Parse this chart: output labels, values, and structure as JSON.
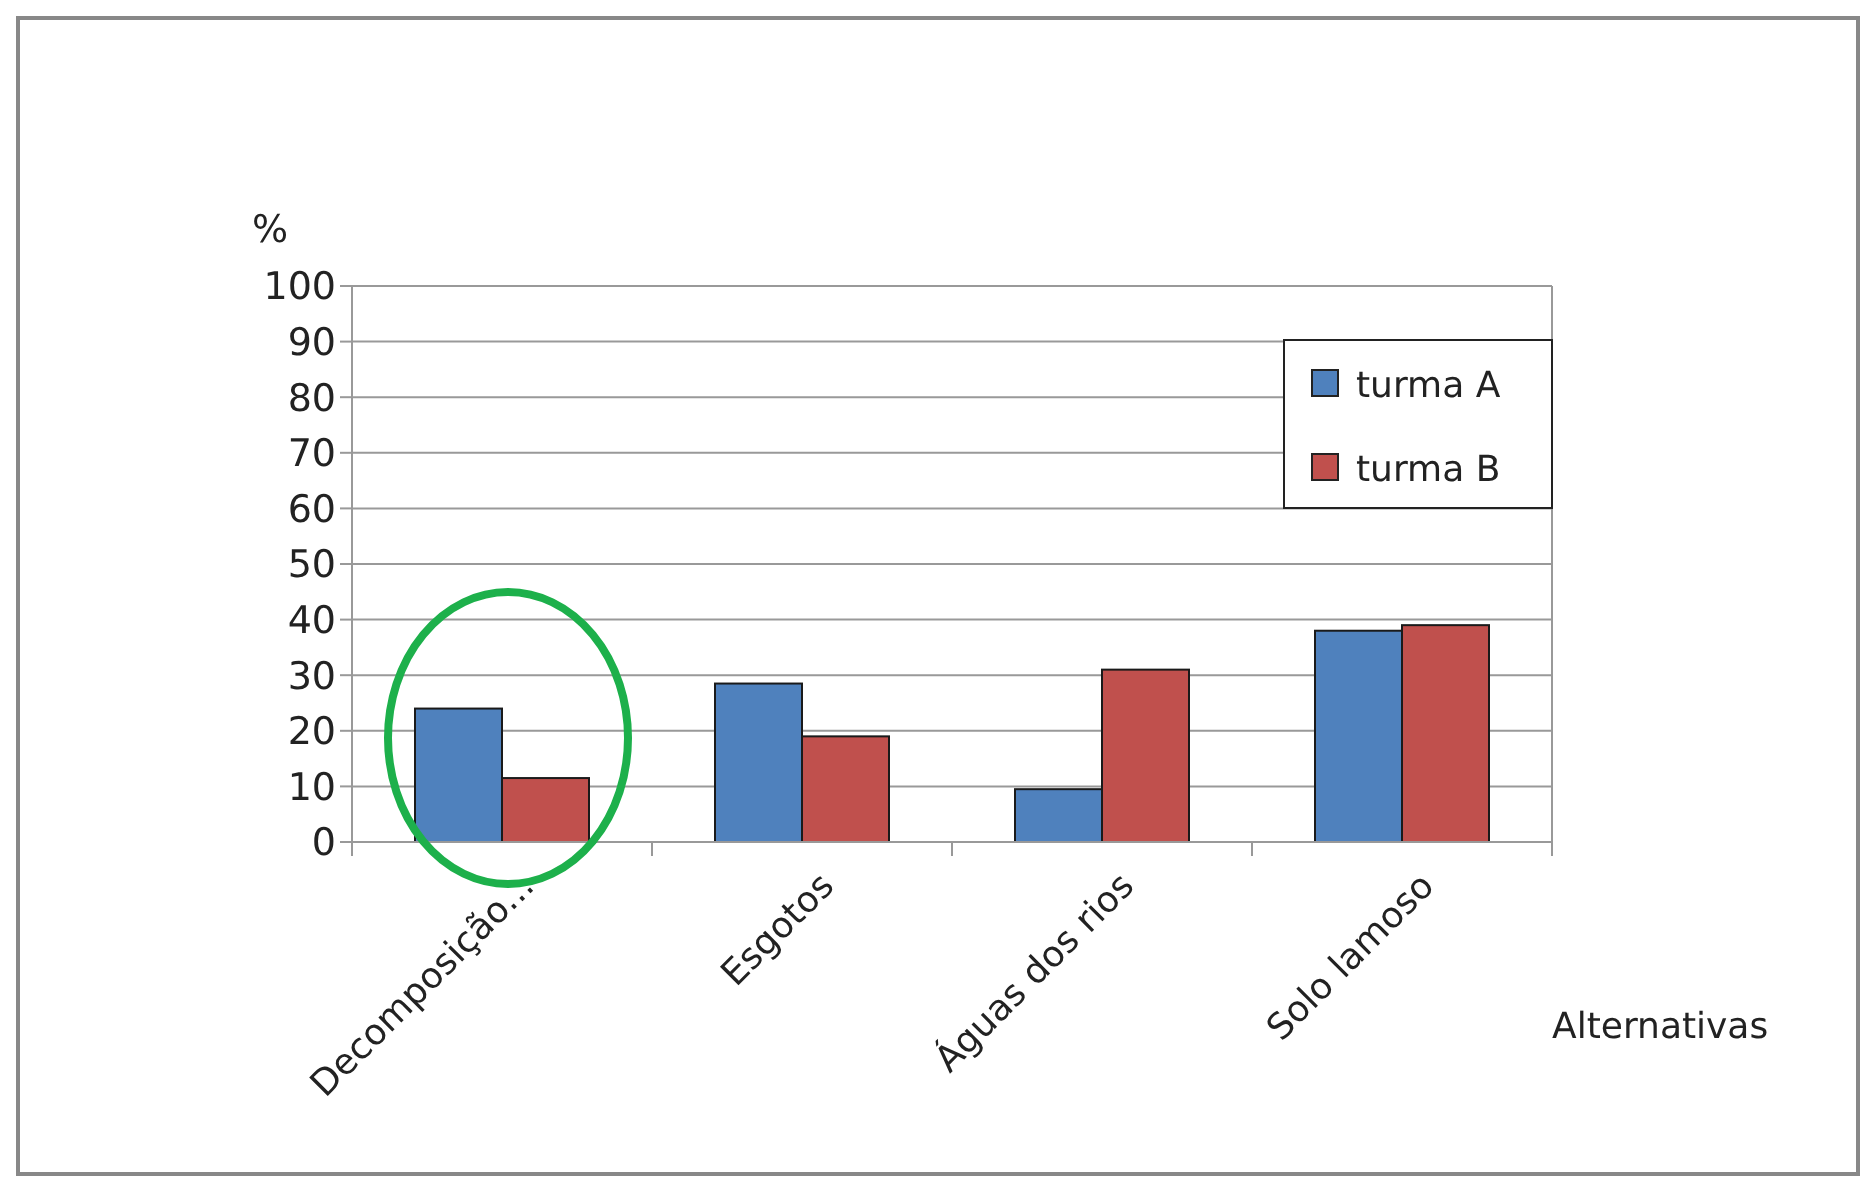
{
  "chart_data": {
    "type": "bar",
    "ylabel": "%",
    "xlabel": "Alternativas",
    "categories": [
      "Decomposição...",
      "Esgotos",
      "Águas dos rios",
      "Solo lamoso"
    ],
    "series": [
      {
        "name": "turma A",
        "color": "#4f81bd",
        "values": [
          24,
          28.5,
          9.5,
          38
        ]
      },
      {
        "name": "turma B",
        "color": "#c0504d",
        "values": [
          11.5,
          19,
          31,
          39
        ]
      }
    ],
    "ylim": [
      0,
      100
    ],
    "yticks": [
      0,
      10,
      20,
      30,
      40,
      50,
      60,
      70,
      80,
      90,
      100
    ],
    "grid": "y",
    "legend": "top right"
  }
}
